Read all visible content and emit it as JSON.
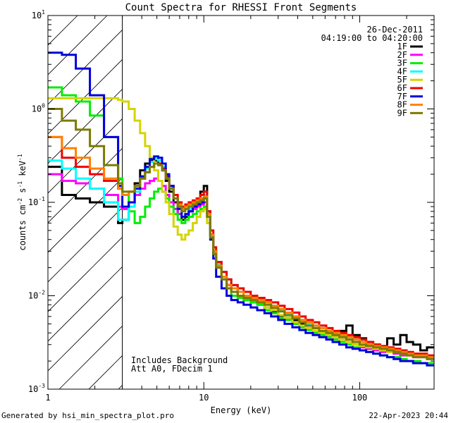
{
  "footer": {
    "generated": "Generated by hsi_min_spectra_plot.pro",
    "date": "22-Apr-2023 20:44"
  },
  "chart_data": {
    "type": "line",
    "title": "Count Spectra for RHESSI Front Segments",
    "xlabel": "Energy (keV)",
    "ylabel_parts": [
      "counts cm",
      "-2",
      " s",
      "-1",
      " keV",
      "-1"
    ],
    "xscale": "log",
    "yscale": "log",
    "xlim": [
      1,
      300
    ],
    "ylim": [
      0.001,
      10
    ],
    "x_ticks": [
      {
        "v": 1,
        "label": "1"
      },
      {
        "v": 10,
        "label": "10"
      },
      {
        "v": 100,
        "label": "100"
      }
    ],
    "y_ticks": [
      {
        "v": 0.001,
        "base": "10",
        "exp": "-3"
      },
      {
        "v": 0.01,
        "base": "10",
        "exp": "-2"
      },
      {
        "v": 0.1,
        "base": "10",
        "exp": "-1"
      },
      {
        "v": 1,
        "base": "10",
        "exp": "0"
      },
      {
        "v": 10,
        "base": "10",
        "exp": "1"
      }
    ],
    "date": "26-Dec-2011",
    "time_range": "04:19:00 to 04:20:00",
    "annotations": [
      "Includes Background",
      "Att A0, FDecim 1"
    ],
    "hatched_below_keV": 3,
    "bin_edges": [
      1.0,
      1.23,
      1.51,
      1.86,
      2.29,
      2.82,
      3.0,
      3.3,
      3.6,
      3.9,
      4.2,
      4.5,
      4.8,
      5.1,
      5.4,
      5.7,
      6.0,
      6.4,
      6.8,
      7.2,
      7.6,
      8.0,
      8.5,
      9.0,
      9.5,
      10.0,
      10.5,
      11.0,
      11.5,
      12.0,
      13.0,
      14.0,
      15.0,
      16.5,
      18.0,
      20.0,
      22.0,
      24.5,
      27.0,
      30.0,
      33.0,
      37.0,
      41.0,
      45.0,
      50.0,
      55.0,
      61.0,
      67.0,
      74.0,
      82.0,
      90.0,
      100.0,
      110.0,
      122.0,
      135.0,
      150.0,
      165.0,
      182.0,
      200.0,
      220.0,
      245.0,
      270.0,
      300.0
    ],
    "series": [
      {
        "name": "1F",
        "color": "#000000",
        "values": [
          0.24,
          0.12,
          0.11,
          0.1,
          0.09,
          0.06,
          0.065,
          0.1,
          0.16,
          0.22,
          0.26,
          0.28,
          0.28,
          0.26,
          0.22,
          0.17,
          0.13,
          0.1,
          0.075,
          0.065,
          0.07,
          0.08,
          0.09,
          0.1,
          0.13,
          0.15,
          0.08,
          0.045,
          0.03,
          0.02,
          0.016,
          0.013,
          0.012,
          0.01,
          0.0095,
          0.009,
          0.0085,
          0.0075,
          0.0068,
          0.006,
          0.0058,
          0.0055,
          0.005,
          0.0048,
          0.0045,
          0.0042,
          0.004,
          0.0038,
          0.0042,
          0.0048,
          0.0038,
          0.0035,
          0.0032,
          0.003,
          0.0028,
          0.0035,
          0.003,
          0.0038,
          0.0032,
          0.003,
          0.0026,
          0.0028
        ]
      },
      {
        "name": "2F",
        "color": "#ff00ff",
        "values": [
          0.2,
          0.17,
          0.16,
          0.14,
          0.12,
          0.09,
          0.085,
          0.1,
          0.12,
          0.14,
          0.16,
          0.17,
          0.18,
          0.17,
          0.15,
          0.12,
          0.1,
          0.085,
          0.075,
          0.07,
          0.075,
          0.08,
          0.085,
          0.09,
          0.095,
          0.1,
          0.07,
          0.045,
          0.03,
          0.02,
          0.016,
          0.013,
          0.011,
          0.01,
          0.009,
          0.0085,
          0.008,
          0.007,
          0.0065,
          0.0058,
          0.0055,
          0.005,
          0.0048,
          0.0045,
          0.0042,
          0.004,
          0.0038,
          0.0036,
          0.0034,
          0.0032,
          0.003,
          0.0028,
          0.0027,
          0.0026,
          0.0025,
          0.0025,
          0.0024,
          0.0023,
          0.0023,
          0.0022,
          0.0022,
          0.0021
        ]
      },
      {
        "name": "3F",
        "color": "#00ee00",
        "values": [
          1.7,
          1.4,
          1.2,
          0.85,
          0.5,
          0.18,
          0.12,
          0.08,
          0.06,
          0.07,
          0.09,
          0.11,
          0.13,
          0.14,
          0.13,
          0.11,
          0.09,
          0.075,
          0.065,
          0.06,
          0.065,
          0.07,
          0.075,
          0.08,
          0.085,
          0.09,
          0.06,
          0.04,
          0.028,
          0.02,
          0.015,
          0.012,
          0.01,
          0.0095,
          0.009,
          0.0085,
          0.008,
          0.007,
          0.0065,
          0.0058,
          0.0055,
          0.005,
          0.0046,
          0.0043,
          0.004,
          0.0038,
          0.0036,
          0.0034,
          0.0032,
          0.003,
          0.0028,
          0.0026,
          0.0025,
          0.0024,
          0.0023,
          0.0022,
          0.0022,
          0.0021,
          0.002,
          0.002,
          0.0019,
          0.0019
        ]
      },
      {
        "name": "4F",
        "color": "#00ffff",
        "values": [
          0.28,
          0.23,
          0.18,
          0.14,
          0.1,
          0.065,
          0.065,
          0.09,
          0.13,
          0.18,
          0.23,
          0.27,
          0.29,
          0.28,
          0.24,
          0.19,
          0.15,
          0.11,
          0.085,
          0.07,
          0.075,
          0.085,
          0.09,
          0.095,
          0.11,
          0.12,
          0.075,
          0.045,
          0.03,
          0.022,
          0.018,
          0.015,
          0.013,
          0.012,
          0.011,
          0.01,
          0.009,
          0.0085,
          0.0078,
          0.007,
          0.0065,
          0.006,
          0.0055,
          0.005,
          0.0048,
          0.0045,
          0.0042,
          0.004,
          0.0038,
          0.0036,
          0.0034,
          0.0032,
          0.003,
          0.0029,
          0.0028,
          0.0027,
          0.0026,
          0.0025,
          0.0024,
          0.0023,
          0.0023,
          0.0022
        ]
      },
      {
        "name": "5F",
        "color": "#d4d400",
        "values": [
          1.3,
          1.3,
          1.3,
          1.3,
          1.3,
          1.25,
          1.2,
          1.0,
          0.75,
          0.55,
          0.4,
          0.3,
          0.22,
          0.17,
          0.13,
          0.1,
          0.075,
          0.055,
          0.045,
          0.04,
          0.045,
          0.05,
          0.06,
          0.07,
          0.08,
          0.085,
          0.06,
          0.04,
          0.028,
          0.02,
          0.015,
          0.012,
          0.011,
          0.01,
          0.0095,
          0.009,
          0.0085,
          0.0075,
          0.007,
          0.0062,
          0.0058,
          0.0052,
          0.0048,
          0.0045,
          0.0042,
          0.004,
          0.0038,
          0.0036,
          0.0034,
          0.0032,
          0.003,
          0.0029,
          0.0028,
          0.0027,
          0.0026,
          0.0025,
          0.0025,
          0.0024,
          0.0023,
          0.0023,
          0.0022,
          0.0022
        ]
      },
      {
        "name": "6F",
        "color": "#ee0000",
        "values": [
          0.5,
          0.3,
          0.24,
          0.2,
          0.17,
          0.14,
          0.12,
          0.13,
          0.15,
          0.18,
          0.21,
          0.24,
          0.26,
          0.26,
          0.23,
          0.19,
          0.15,
          0.12,
          0.1,
          0.09,
          0.095,
          0.1,
          0.105,
          0.11,
          0.12,
          0.13,
          0.08,
          0.05,
          0.033,
          0.023,
          0.018,
          0.015,
          0.013,
          0.012,
          0.011,
          0.01,
          0.0095,
          0.009,
          0.0085,
          0.0078,
          0.0072,
          0.0066,
          0.006,
          0.0055,
          0.0052,
          0.0048,
          0.0045,
          0.0042,
          0.004,
          0.0038,
          0.0036,
          0.0034,
          0.0032,
          0.003,
          0.0029,
          0.0028,
          0.0027,
          0.0026,
          0.0025,
          0.0024,
          0.0024,
          0.0023
        ]
      },
      {
        "name": "7F",
        "color": "#0000dd",
        "values": [
          4.0,
          3.8,
          2.7,
          1.4,
          0.5,
          0.15,
          0.09,
          0.1,
          0.14,
          0.19,
          0.24,
          0.29,
          0.31,
          0.3,
          0.26,
          0.2,
          0.15,
          0.11,
          0.085,
          0.07,
          0.075,
          0.08,
          0.09,
          0.095,
          0.1,
          0.11,
          0.07,
          0.04,
          0.025,
          0.016,
          0.012,
          0.01,
          0.009,
          0.0085,
          0.008,
          0.0075,
          0.007,
          0.0065,
          0.006,
          0.0055,
          0.005,
          0.0046,
          0.0043,
          0.004,
          0.0038,
          0.0036,
          0.0034,
          0.0032,
          0.003,
          0.0028,
          0.0027,
          0.0026,
          0.0025,
          0.0024,
          0.0023,
          0.0022,
          0.0021,
          0.002,
          0.002,
          0.0019,
          0.0019,
          0.0018
        ]
      },
      {
        "name": "8F",
        "color": "#ff8000",
        "values": [
          0.5,
          0.38,
          0.3,
          0.23,
          0.18,
          0.14,
          0.12,
          0.13,
          0.15,
          0.18,
          0.21,
          0.24,
          0.26,
          0.25,
          0.22,
          0.18,
          0.14,
          0.11,
          0.095,
          0.085,
          0.09,
          0.095,
          0.1,
          0.105,
          0.11,
          0.115,
          0.075,
          0.045,
          0.03,
          0.021,
          0.016,
          0.013,
          0.012,
          0.011,
          0.01,
          0.0095,
          0.009,
          0.0085,
          0.0078,
          0.0072,
          0.0066,
          0.006,
          0.0055,
          0.0052,
          0.0048,
          0.0045,
          0.0042,
          0.004,
          0.0038,
          0.0036,
          0.0034,
          0.0032,
          0.003,
          0.0029,
          0.0028,
          0.0027,
          0.0026,
          0.0025,
          0.0024,
          0.0023,
          0.0023,
          0.0022
        ]
      },
      {
        "name": "9F",
        "color": "#7b7b00",
        "values": [
          1.0,
          0.75,
          0.6,
          0.4,
          0.25,
          0.16,
          0.13,
          0.13,
          0.15,
          0.18,
          0.21,
          0.24,
          0.26,
          0.25,
          0.22,
          0.18,
          0.14,
          0.11,
          0.09,
          0.08,
          0.085,
          0.09,
          0.095,
          0.1,
          0.105,
          0.11,
          0.07,
          0.042,
          0.028,
          0.02,
          0.015,
          0.012,
          0.011,
          0.01,
          0.0095,
          0.009,
          0.0085,
          0.008,
          0.0074,
          0.0068,
          0.0062,
          0.0057,
          0.0052,
          0.0048,
          0.0045,
          0.0042,
          0.004,
          0.0038,
          0.0036,
          0.0034,
          0.0032,
          0.003,
          0.0029,
          0.0028,
          0.0027,
          0.0026,
          0.0025,
          0.0024,
          0.0023,
          0.0022,
          0.0022,
          0.0021
        ]
      }
    ]
  }
}
